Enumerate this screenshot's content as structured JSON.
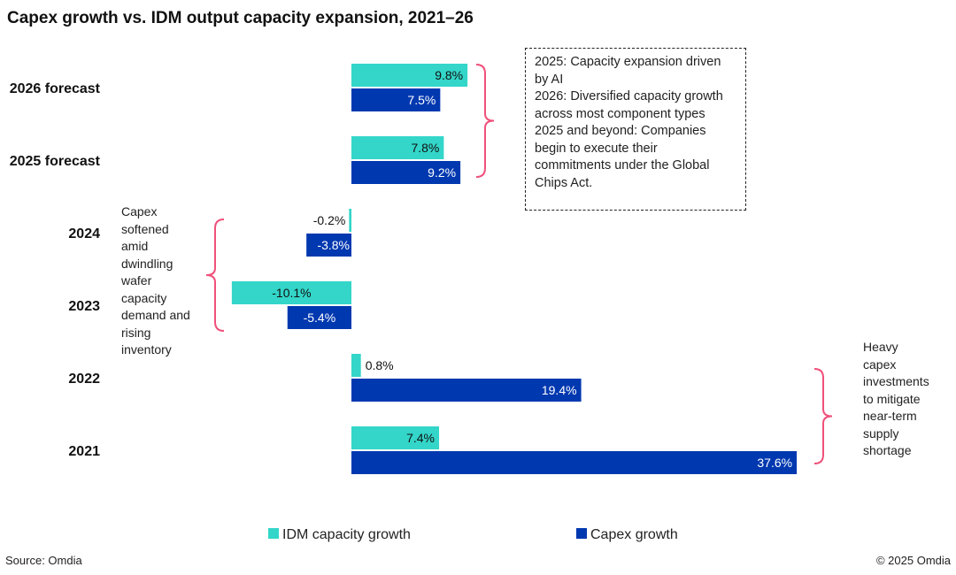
{
  "title": "Capex growth vs. IDM output capacity expansion, 2021–26",
  "source": "Source: Omdia",
  "copyright": "© 2025 Omdia",
  "annotations": {
    "box": [
      "2025: Capacity expansion driven by AI",
      "2026: Diversified capacity growth across most component types",
      "2025 and beyond: Companies begin to execute their commitments under the Global Chips Act."
    ],
    "left": "Capex softened amid dwindling wafer capacity demand and rising inventory",
    "right": "Heavy capex investments to mitigate near-term supply shortage"
  },
  "colors": {
    "idm": "#33d6c9",
    "capex": "#0038b0",
    "bracket": "#f0507a"
  },
  "chart_data": {
    "type": "bar",
    "orientation": "horizontal",
    "categories": [
      "2026 forecast",
      "2025 forecast",
      "2024",
      "2023",
      "2022",
      "2021"
    ],
    "series": [
      {
        "name": "IDM capacity growth",
        "values": [
          9.8,
          7.8,
          -0.2,
          -10.1,
          0.8,
          7.4
        ]
      },
      {
        "name": "Capex growth",
        "values": [
          7.5,
          9.2,
          -3.8,
          -5.4,
          19.4,
          37.6
        ]
      }
    ],
    "unit": "%",
    "legend": "bottom",
    "grid": false
  }
}
